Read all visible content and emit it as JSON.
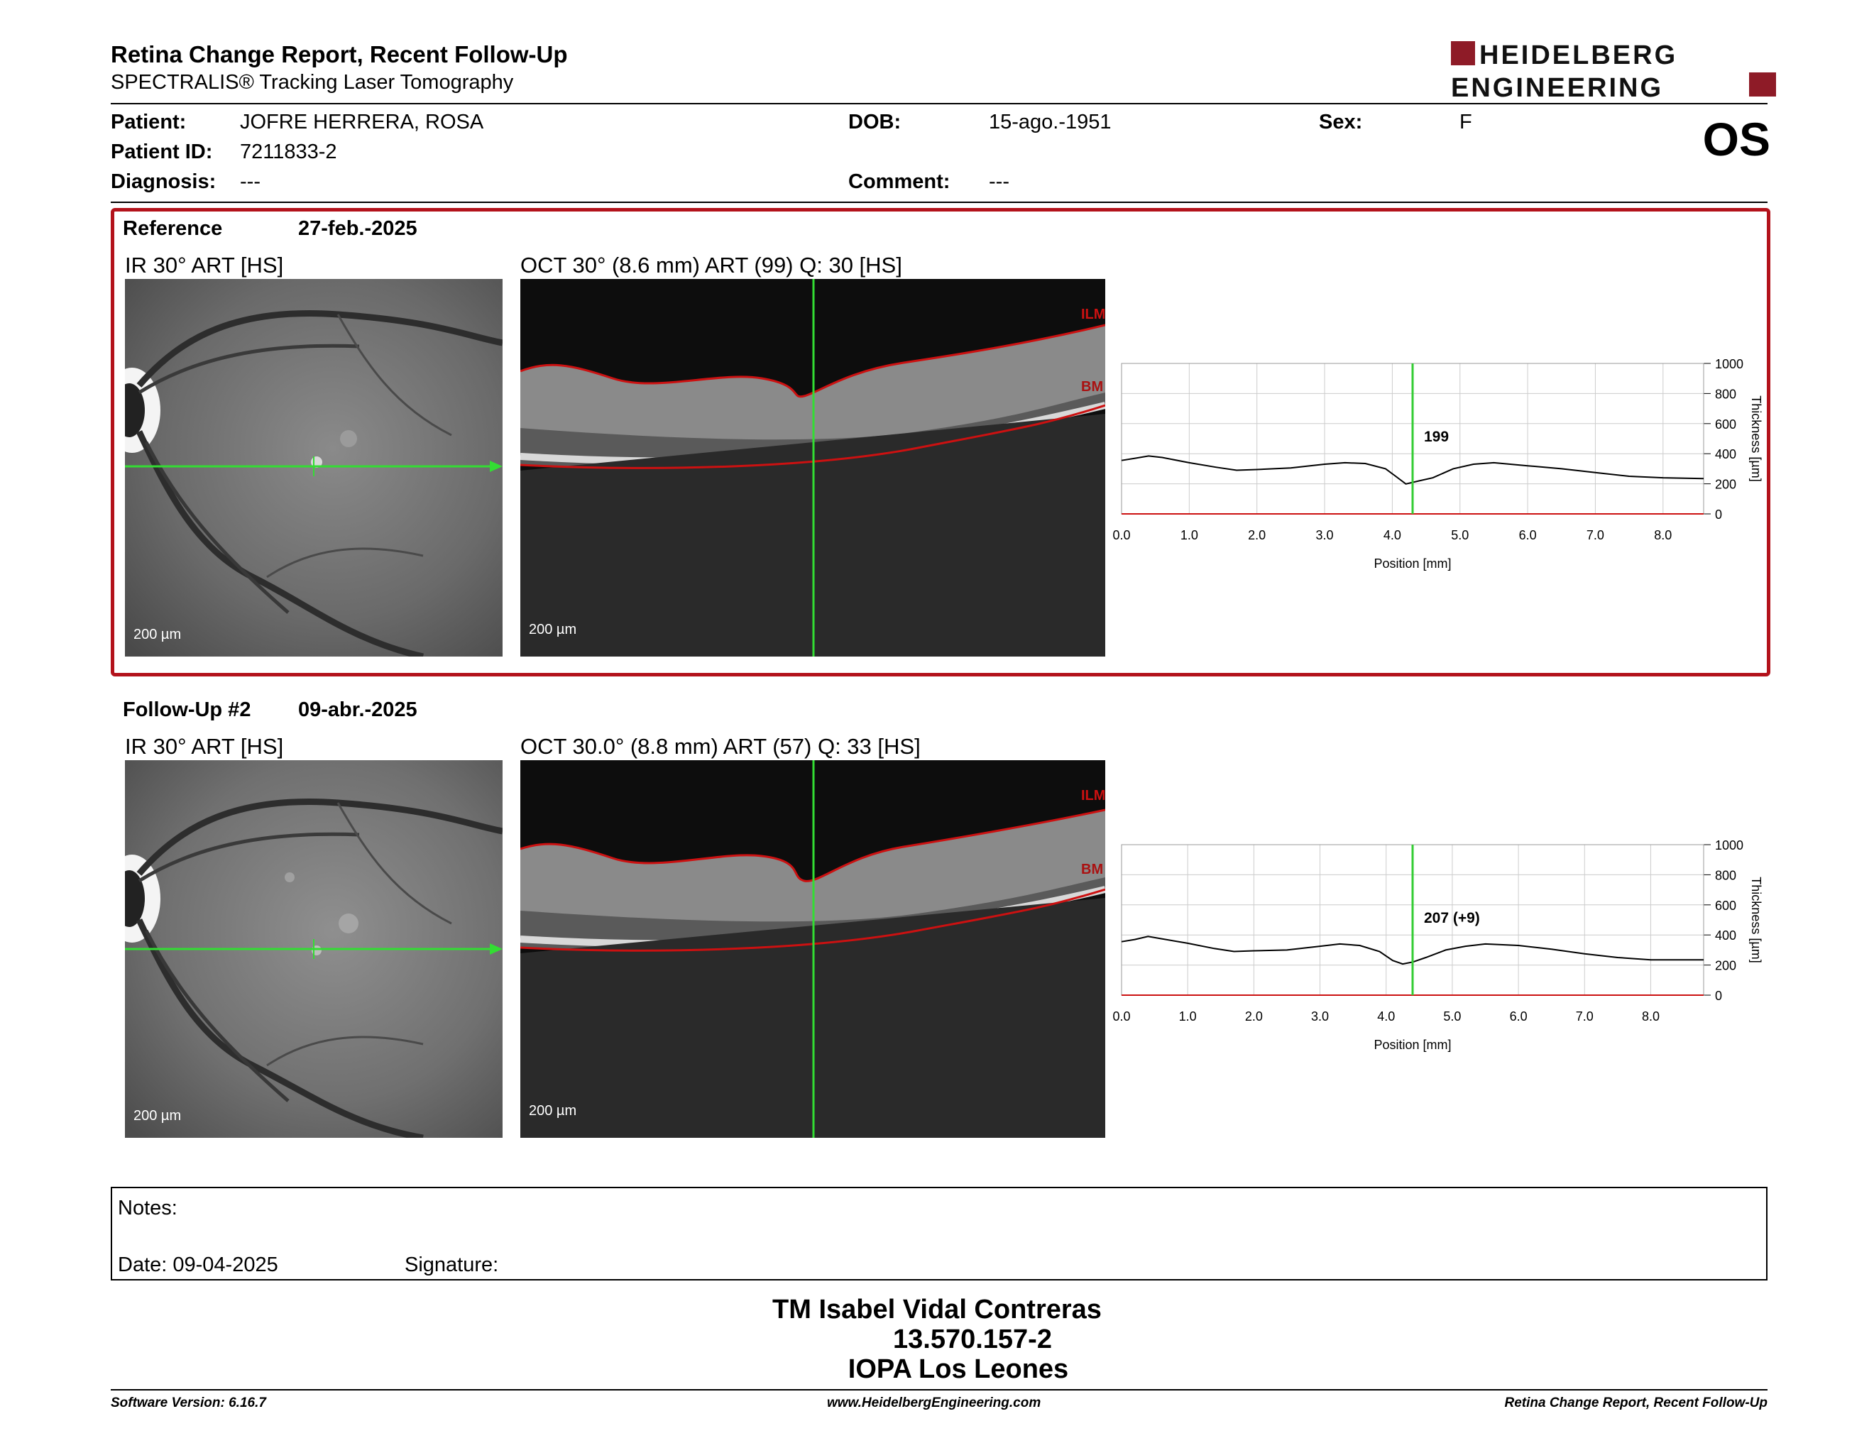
{
  "header": {
    "title": "Retina Change Report, Recent Follow-Up",
    "subtitle": "SPECTRALIS® Tracking Laser Tomography",
    "logo_line1": "HEIDELBERG",
    "logo_line2": "ENGINEERING",
    "eye": "OS"
  },
  "patient": {
    "patient_label": "Patient:",
    "patient_value": "JOFRE HERRERA, ROSA",
    "id_label": "Patient ID:",
    "id_value": "7211833-2",
    "diagnosis_label": "Diagnosis:",
    "diagnosis_value": "---",
    "dob_label": "DOB:",
    "dob_value": "15-ago.-1951",
    "comment_label": "Comment:",
    "comment_value": "---",
    "sex_label": "Sex:",
    "sex_value": "F"
  },
  "reference": {
    "label": "Reference",
    "date": "27-feb.-2025",
    "ir_label": "IR 30° ART [HS]",
    "oct_label": "OCT 30° (8.6 mm) ART (99) Q: 30 [HS]",
    "ir_scale": "200 µm",
    "oct_scale": "200 µm",
    "ilm": "ILM",
    "bm": "BM"
  },
  "followup": {
    "label": "Follow-Up #2",
    "date": "09-abr.-2025",
    "ir_label": "IR 30° ART [HS]",
    "oct_label": "OCT 30.0° (8.8 mm) ART (57) Q: 33 [HS]",
    "ir_scale": "200 µm",
    "oct_scale": "200 µm",
    "ilm": "ILM",
    "bm": "BM"
  },
  "chart_data": [
    {
      "type": "line",
      "xlabel": "Position [mm]",
      "ylabel": "Thickness [µm]",
      "xlim": [
        0,
        8.6
      ],
      "ylim": [
        0,
        1000
      ],
      "x_ticks": [
        "0.0",
        "1.0",
        "2.0",
        "3.0",
        "4.0",
        "5.0",
        "6.0",
        "7.0",
        "8.0"
      ],
      "y_ticks": [
        "0",
        "200",
        "400",
        "600",
        "800",
        "1000"
      ],
      "cursor_x": 4.3,
      "cursor_label": "199",
      "grid": true,
      "x": [
        0.0,
        0.2,
        0.4,
        0.6,
        1.0,
        1.4,
        1.7,
        2.0,
        2.5,
        3.0,
        3.3,
        3.6,
        3.9,
        4.05,
        4.2,
        4.4,
        4.6,
        4.9,
        5.2,
        5.5,
        6.0,
        6.5,
        7.0,
        7.5,
        8.0,
        8.6
      ],
      "y": [
        355,
        370,
        385,
        375,
        340,
        310,
        290,
        295,
        305,
        330,
        340,
        335,
        300,
        250,
        199,
        220,
        240,
        300,
        330,
        340,
        320,
        300,
        275,
        250,
        240,
        235
      ],
      "line_color": "#000000",
      "cursor_color": "#33cc33"
    },
    {
      "type": "line",
      "xlabel": "Position [mm]",
      "ylabel": "Thickness [µm]",
      "xlim": [
        0,
        8.8
      ],
      "ylim": [
        0,
        1000
      ],
      "x_ticks": [
        "0.0",
        "1.0",
        "2.0",
        "3.0",
        "4.0",
        "5.0",
        "6.0",
        "7.0",
        "8.0"
      ],
      "y_ticks": [
        "0",
        "200",
        "400",
        "600",
        "800",
        "1000"
      ],
      "cursor_x": 4.4,
      "cursor_label": "207 (+9)",
      "grid": true,
      "x": [
        0.0,
        0.2,
        0.4,
        0.6,
        1.0,
        1.4,
        1.7,
        2.0,
        2.5,
        3.0,
        3.3,
        3.6,
        3.9,
        4.1,
        4.25,
        4.4,
        4.6,
        4.9,
        5.2,
        5.5,
        6.0,
        6.5,
        7.0,
        7.5,
        8.0,
        8.8
      ],
      "y": [
        355,
        370,
        390,
        375,
        345,
        310,
        290,
        295,
        300,
        325,
        340,
        330,
        290,
        230,
        207,
        220,
        250,
        300,
        325,
        340,
        330,
        305,
        275,
        250,
        235,
        235
      ],
      "line_color": "#000000",
      "cursor_color": "#33cc33"
    }
  ],
  "notes": {
    "notes_label": "Notes:",
    "date_label": "Date: 09-04-2025",
    "signature_label": "Signature:"
  },
  "signature": {
    "line1": "TM Isabel Vidal Contreras",
    "line2": "13.570.157-2",
    "line3": "IOPA Los Leones"
  },
  "footer": {
    "version": "Software Version: 6.16.7",
    "website": "www.HeidelbergEngineering.com",
    "report": "Retina Change Report, Recent Follow-Up"
  },
  "colors": {
    "brand_red": "#b3121b",
    "scan_green": "#33dd33",
    "layer_red": "#cc1111"
  }
}
